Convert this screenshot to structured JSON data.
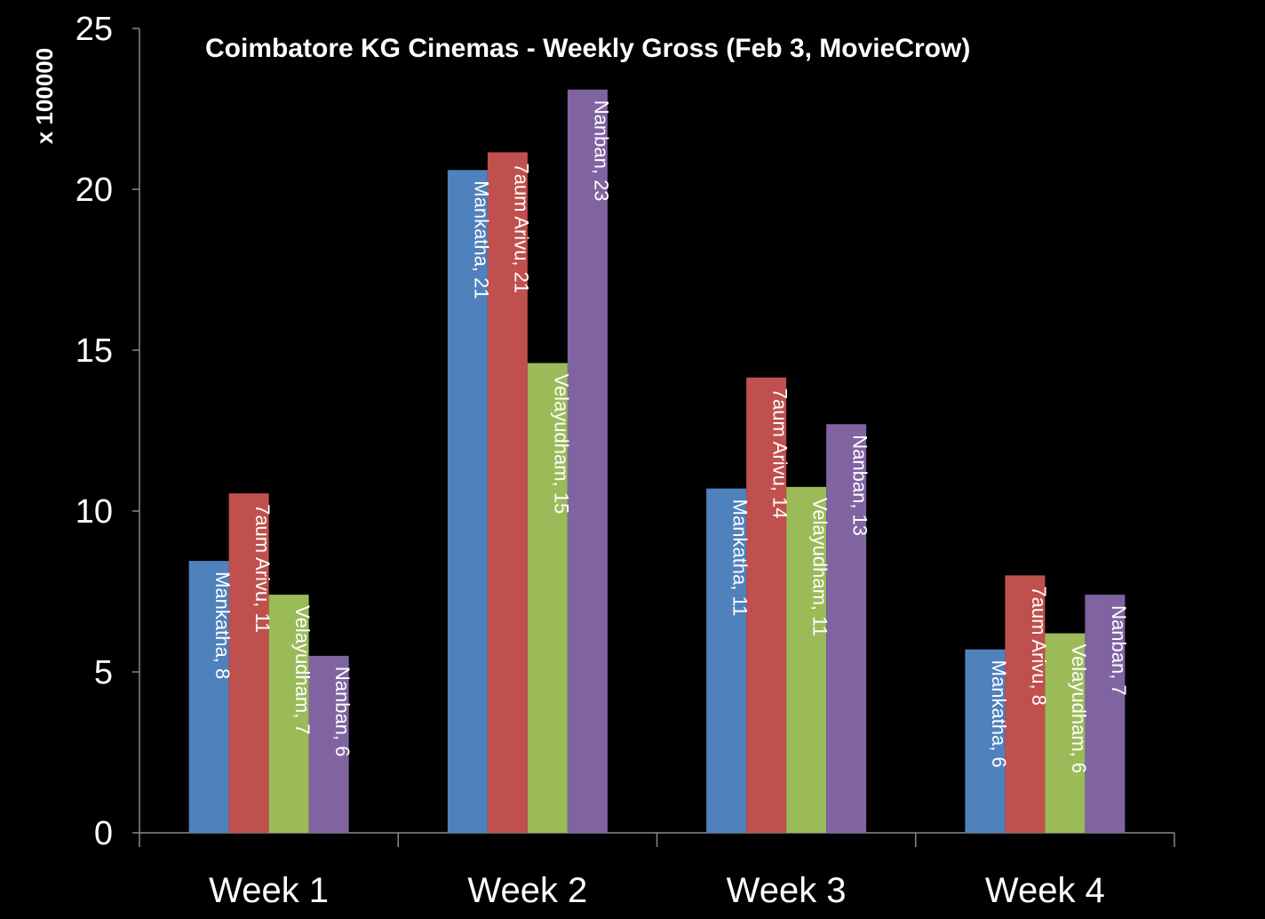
{
  "chart_data": {
    "type": "bar",
    "title": "Coimbatore KG Cinemas - Weekly Gross (Feb 3, MovieCrow)",
    "ylabel": "x 100000",
    "xlabel": "",
    "ylim": [
      0,
      25
    ],
    "yticks": [
      0,
      5,
      10,
      15,
      20,
      25
    ],
    "categories": [
      "Week 1",
      "Week 2",
      "Week 3",
      "Week 4"
    ],
    "series": [
      {
        "name": "Mankatha",
        "color": "#4F81BD",
        "values": [
          8.45,
          20.6,
          10.7,
          5.7
        ],
        "labels": [
          "Mankatha, 8",
          "Mankatha, 21",
          "Mankatha, 11",
          "Mankatha, 6"
        ]
      },
      {
        "name": "7aum Arivu",
        "color": "#C0504D",
        "values": [
          10.55,
          21.15,
          14.15,
          8.0
        ],
        "labels": [
          "7aum Arivu, 11",
          "7aum Arivu, 21",
          "7aum Arivu, 14",
          "7aum Arivu, 8"
        ]
      },
      {
        "name": "Velayudham",
        "color": "#9BBB59",
        "values": [
          7.4,
          14.6,
          10.75,
          6.2
        ],
        "labels": [
          "Velayudham, 7",
          "Velayudham, 15",
          "Velayudham, 11",
          "Velayudham, 6"
        ]
      },
      {
        "name": "Nanban",
        "color": "#8064A2",
        "values": [
          5.5,
          23.1,
          12.7,
          7.4
        ],
        "labels": [
          "Nanban, 6",
          "Nanban, 23",
          "Nanban, 13",
          "Nanban, 7"
        ]
      }
    ],
    "grid": false,
    "legend": "none"
  }
}
